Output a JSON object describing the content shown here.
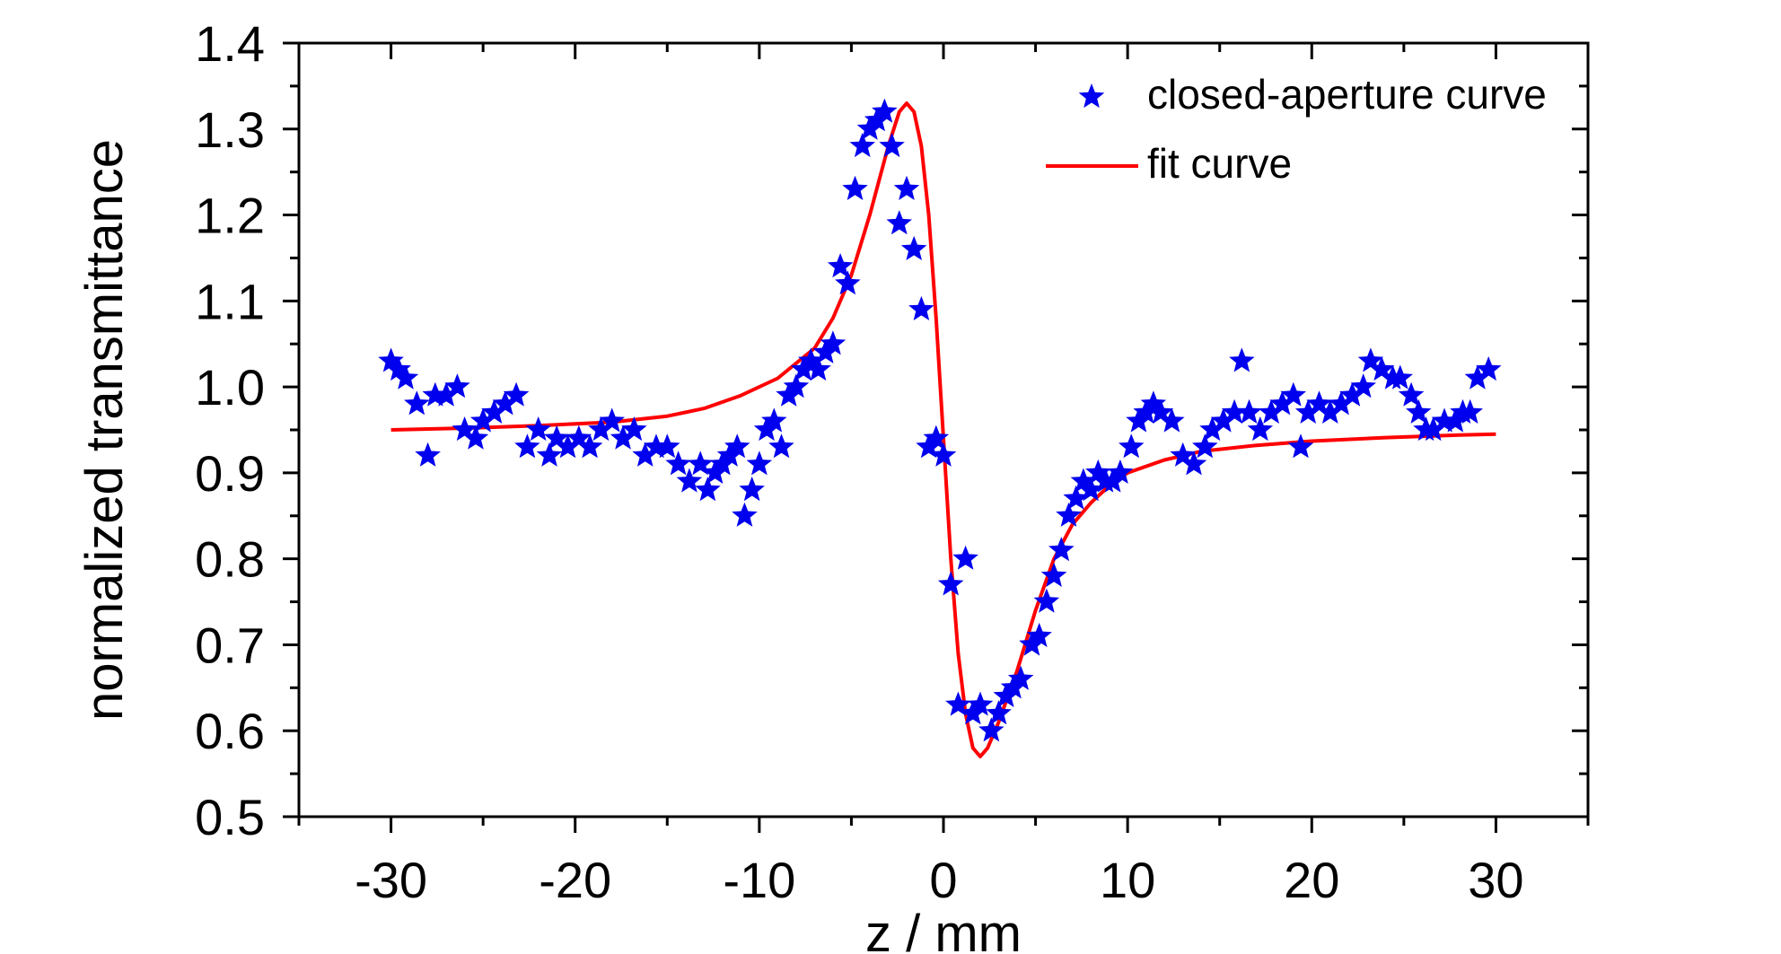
{
  "chart_data": {
    "type": "scatter",
    "xlabel": "z / mm",
    "ylabel": "normalized transmittance",
    "xlim": [
      -35,
      35
    ],
    "ylim": [
      0.5,
      1.4
    ],
    "x_ticks": [
      -30,
      -20,
      -10,
      0,
      10,
      20,
      30
    ],
    "x_tick_labels": [
      "-30",
      "-20",
      "-10",
      "0",
      "10",
      "20",
      "30"
    ],
    "y_ticks": [
      0.5,
      0.6,
      0.7,
      0.8,
      0.9,
      1.0,
      1.1,
      1.2,
      1.3,
      1.4
    ],
    "y_tick_labels": [
      "0.5",
      "0.6",
      "0.7",
      "0.8",
      "0.9",
      "1.0",
      "1.1",
      "1.2",
      "1.3",
      "1.4"
    ],
    "grid": false,
    "legend_position": "top-right",
    "series": [
      {
        "name": "closed-aperture curve",
        "kind": "scatter",
        "marker": "star",
        "color": "#0000ee",
        "points": [
          [
            -30.0,
            1.03
          ],
          [
            -29.6,
            1.02
          ],
          [
            -29.2,
            1.01
          ],
          [
            -28.6,
            0.98
          ],
          [
            -28.0,
            0.92
          ],
          [
            -27.6,
            0.99
          ],
          [
            -27.0,
            0.99
          ],
          [
            -26.4,
            1.0
          ],
          [
            -26.0,
            0.95
          ],
          [
            -25.4,
            0.94
          ],
          [
            -25.0,
            0.96
          ],
          [
            -24.4,
            0.97
          ],
          [
            -23.8,
            0.98
          ],
          [
            -23.2,
            0.99
          ],
          [
            -22.6,
            0.93
          ],
          [
            -22.0,
            0.95
          ],
          [
            -21.4,
            0.92
          ],
          [
            -21.0,
            0.94
          ],
          [
            -20.4,
            0.93
          ],
          [
            -19.8,
            0.94
          ],
          [
            -19.2,
            0.93
          ],
          [
            -18.6,
            0.95
          ],
          [
            -18.0,
            0.96
          ],
          [
            -17.4,
            0.94
          ],
          [
            -16.8,
            0.95
          ],
          [
            -16.2,
            0.92
          ],
          [
            -15.6,
            0.93
          ],
          [
            -15.0,
            0.93
          ],
          [
            -14.4,
            0.91
          ],
          [
            -13.8,
            0.89
          ],
          [
            -13.2,
            0.91
          ],
          [
            -12.8,
            0.88
          ],
          [
            -12.4,
            0.9
          ],
          [
            -12.0,
            0.91
          ],
          [
            -11.6,
            0.92
          ],
          [
            -11.2,
            0.93
          ],
          [
            -10.8,
            0.85
          ],
          [
            -10.4,
            0.88
          ],
          [
            -10.0,
            0.91
          ],
          [
            -9.6,
            0.95
          ],
          [
            -9.2,
            0.96
          ],
          [
            -8.8,
            0.93
          ],
          [
            -8.4,
            0.99
          ],
          [
            -8.0,
            1.0
          ],
          [
            -7.6,
            1.02
          ],
          [
            -7.2,
            1.03
          ],
          [
            -6.8,
            1.02
          ],
          [
            -6.4,
            1.04
          ],
          [
            -6.0,
            1.05
          ],
          [
            -5.6,
            1.14
          ],
          [
            -5.2,
            1.12
          ],
          [
            -4.8,
            1.23
          ],
          [
            -4.4,
            1.28
          ],
          [
            -4.0,
            1.3
          ],
          [
            -3.6,
            1.31
          ],
          [
            -3.2,
            1.32
          ],
          [
            -2.8,
            1.28
          ],
          [
            -2.4,
            1.19
          ],
          [
            -2.0,
            1.23
          ],
          [
            -1.6,
            1.16
          ],
          [
            -1.2,
            1.09
          ],
          [
            -0.8,
            0.93
          ],
          [
            -0.4,
            0.94
          ],
          [
            0.0,
            0.92
          ],
          [
            0.4,
            0.77
          ],
          [
            1.2,
            0.8
          ],
          [
            0.8,
            0.63
          ],
          [
            1.6,
            0.62
          ],
          [
            2.0,
            0.63
          ],
          [
            2.6,
            0.6
          ],
          [
            3.0,
            0.62
          ],
          [
            3.4,
            0.64
          ],
          [
            3.8,
            0.65
          ],
          [
            4.2,
            0.66
          ],
          [
            4.8,
            0.7
          ],
          [
            5.2,
            0.71
          ],
          [
            5.6,
            0.75
          ],
          [
            6.0,
            0.78
          ],
          [
            6.4,
            0.81
          ],
          [
            6.8,
            0.85
          ],
          [
            7.2,
            0.87
          ],
          [
            7.6,
            0.89
          ],
          [
            8.0,
            0.88
          ],
          [
            8.4,
            0.9
          ],
          [
            8.8,
            0.89
          ],
          [
            9.2,
            0.89
          ],
          [
            9.6,
            0.9
          ],
          [
            10.2,
            0.93
          ],
          [
            10.6,
            0.96
          ],
          [
            11.0,
            0.97
          ],
          [
            11.4,
            0.98
          ],
          [
            11.8,
            0.97
          ],
          [
            12.4,
            0.96
          ],
          [
            13.0,
            0.92
          ],
          [
            13.6,
            0.91
          ],
          [
            14.2,
            0.93
          ],
          [
            14.6,
            0.95
          ],
          [
            15.2,
            0.96
          ],
          [
            15.8,
            0.97
          ],
          [
            16.2,
            1.03
          ],
          [
            16.6,
            0.97
          ],
          [
            17.2,
            0.95
          ],
          [
            17.8,
            0.97
          ],
          [
            18.4,
            0.98
          ],
          [
            19.0,
            0.99
          ],
          [
            19.4,
            0.93
          ],
          [
            19.8,
            0.97
          ],
          [
            20.4,
            0.98
          ],
          [
            21.0,
            0.97
          ],
          [
            21.6,
            0.98
          ],
          [
            22.2,
            0.99
          ],
          [
            22.8,
            1.0
          ],
          [
            23.2,
            1.03
          ],
          [
            23.8,
            1.02
          ],
          [
            24.4,
            1.01
          ],
          [
            24.8,
            1.01
          ],
          [
            25.4,
            0.99
          ],
          [
            25.8,
            0.97
          ],
          [
            26.2,
            0.95
          ],
          [
            26.6,
            0.95
          ],
          [
            27.2,
            0.96
          ],
          [
            27.8,
            0.96
          ],
          [
            28.2,
            0.97
          ],
          [
            28.6,
            0.97
          ],
          [
            29.0,
            1.01
          ],
          [
            29.6,
            1.02
          ]
        ]
      },
      {
        "name": "fit curve",
        "kind": "line",
        "color": "#ff0000",
        "points": [
          [
            -30.0,
            0.95
          ],
          [
            -26.0,
            0.952
          ],
          [
            -22.0,
            0.955
          ],
          [
            -18.0,
            0.959
          ],
          [
            -15.0,
            0.966
          ],
          [
            -13.0,
            0.975
          ],
          [
            -11.0,
            0.99
          ],
          [
            -9.0,
            1.01
          ],
          [
            -7.0,
            1.045
          ],
          [
            -6.0,
            1.08
          ],
          [
            -5.0,
            1.13
          ],
          [
            -4.0,
            1.2
          ],
          [
            -3.0,
            1.28
          ],
          [
            -2.4,
            1.32
          ],
          [
            -2.0,
            1.33
          ],
          [
            -1.6,
            1.32
          ],
          [
            -1.2,
            1.28
          ],
          [
            -0.8,
            1.2
          ],
          [
            -0.4,
            1.08
          ],
          [
            0.0,
            0.94
          ],
          [
            0.4,
            0.8
          ],
          [
            0.8,
            0.69
          ],
          [
            1.2,
            0.62
          ],
          [
            1.6,
            0.58
          ],
          [
            2.0,
            0.57
          ],
          [
            2.4,
            0.58
          ],
          [
            3.0,
            0.61
          ],
          [
            4.0,
            0.67
          ],
          [
            5.0,
            0.74
          ],
          [
            6.0,
            0.8
          ],
          [
            7.0,
            0.84
          ],
          [
            8.0,
            0.865
          ],
          [
            9.0,
            0.885
          ],
          [
            10.0,
            0.9
          ],
          [
            12.0,
            0.915
          ],
          [
            14.0,
            0.925
          ],
          [
            17.0,
            0.932
          ],
          [
            20.0,
            0.937
          ],
          [
            24.0,
            0.941
          ],
          [
            28.0,
            0.944
          ],
          [
            30.0,
            0.945
          ]
        ]
      }
    ]
  }
}
